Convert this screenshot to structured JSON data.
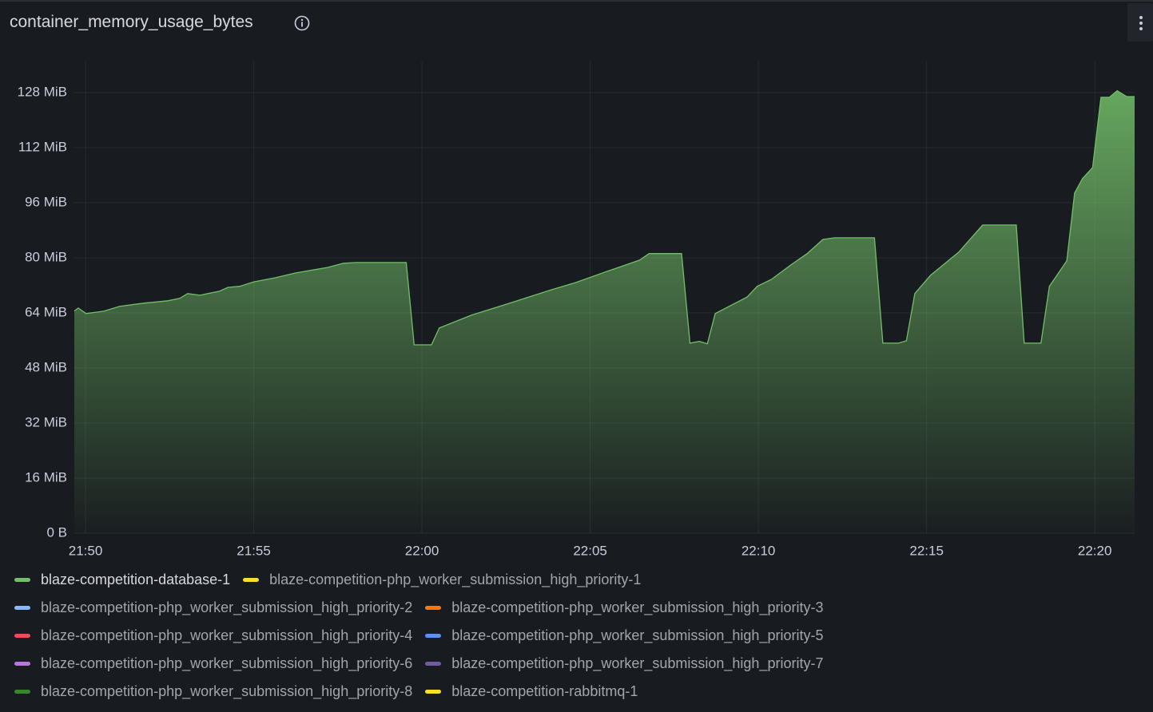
{
  "chart_data": {
    "type": "area",
    "title": "container_memory_usage_bytes",
    "x": [
      "21:49:40",
      "21:49:47",
      "21:50:01",
      "21:50:33",
      "21:51:01",
      "21:51:44",
      "21:52:27",
      "21:52:48",
      "21:53:02",
      "21:53:24",
      "21:53:59",
      "21:54:14",
      "21:54:35",
      "21:55:00",
      "21:55:39",
      "21:56:15",
      "21:57:12",
      "21:57:40",
      "21:58:02",
      "21:59:32",
      "21:59:46",
      "22:00:17",
      "22:00:31",
      "22:01:28",
      "22:02:40",
      "22:03:51",
      "22:04:34",
      "22:05:31",
      "22:06:28",
      "22:06:45",
      "22:07:43",
      "22:07:58",
      "22:08:15",
      "22:08:29",
      "22:08:43",
      "22:09:40",
      "22:09:58",
      "22:10:23",
      "22:10:58",
      "22:11:27",
      "22:11:55",
      "22:12:16",
      "22:13:27",
      "22:13:42",
      "22:14:10",
      "22:14:24",
      "22:14:39",
      "22:15:07",
      "22:15:57",
      "22:16:40",
      "22:17:40",
      "22:17:54",
      "22:18:24",
      "22:18:39",
      "22:19:10",
      "22:19:24",
      "22:19:38",
      "22:19:56",
      "22:20:11",
      "22:20:26",
      "22:20:40",
      "22:20:57",
      "22:21:11"
    ],
    "series": [
      {
        "name": "blaze-competition-database-1",
        "color": "#73bf69",
        "values": [
          64.5,
          65.4,
          63.8,
          64.5,
          65.9,
          66.8,
          67.5,
          68.2,
          69.6,
          69.1,
          70.3,
          71.4,
          71.7,
          73.0,
          74.2,
          75.6,
          77.2,
          78.4,
          78.6,
          78.6,
          54.7,
          54.7,
          59.6,
          63.3,
          67.0,
          70.7,
          72.8,
          76.1,
          79.3,
          81.2,
          81.2,
          55.2,
          55.7,
          55.0,
          63.8,
          68.6,
          71.7,
          73.7,
          77.9,
          81.2,
          85.3,
          85.8,
          85.8,
          55.2,
          55.2,
          55.9,
          69.6,
          74.9,
          81.6,
          89.5,
          89.5,
          55.2,
          55.2,
          71.7,
          79.1,
          98.8,
          103.0,
          106.2,
          126.6,
          126.6,
          128.5,
          126.8,
          126.8
        ]
      },
      {
        "name": "blaze-competition-php_worker_submission_high_priority-1",
        "color": "#fade2a"
      },
      {
        "name": "blaze-competition-php_worker_submission_high_priority-2",
        "color": "#8ab8ff"
      },
      {
        "name": "blaze-competition-php_worker_submission_high_priority-3",
        "color": "#ff780a"
      },
      {
        "name": "blaze-competition-php_worker_submission_high_priority-4",
        "color": "#f2495c"
      },
      {
        "name": "blaze-competition-php_worker_submission_high_priority-5",
        "color": "#5794f2"
      },
      {
        "name": "blaze-competition-php_worker_submission_high_priority-6",
        "color": "#b877d9"
      },
      {
        "name": "blaze-competition-php_worker_submission_high_priority-7",
        "color": "#705da0"
      },
      {
        "name": "blaze-competition-php_worker_submission_high_priority-8",
        "color": "#37872d"
      },
      {
        "name": "blaze-competition-rabbitmq-1",
        "color": "#fade2a"
      }
    ],
    "xlim": [
      "21:49:40",
      "22:21:11"
    ],
    "xticks": [
      "21:50",
      "21:55",
      "22:00",
      "22:05",
      "22:10",
      "22:15",
      "22:20"
    ],
    "ylim": [
      0,
      137
    ],
    "yticks": [
      {
        "value": 0,
        "label": "0 B"
      },
      {
        "value": 16,
        "label": "16 MiB"
      },
      {
        "value": 32,
        "label": "32 MiB"
      },
      {
        "value": 48,
        "label": "48 MiB"
      },
      {
        "value": 64,
        "label": "64 MiB"
      },
      {
        "value": 80,
        "label": "80 MiB"
      },
      {
        "value": 96,
        "label": "96 MiB"
      },
      {
        "value": 112,
        "label": "112 MiB"
      },
      {
        "value": 128,
        "label": "128 MiB"
      }
    ],
    "grid": true
  }
}
